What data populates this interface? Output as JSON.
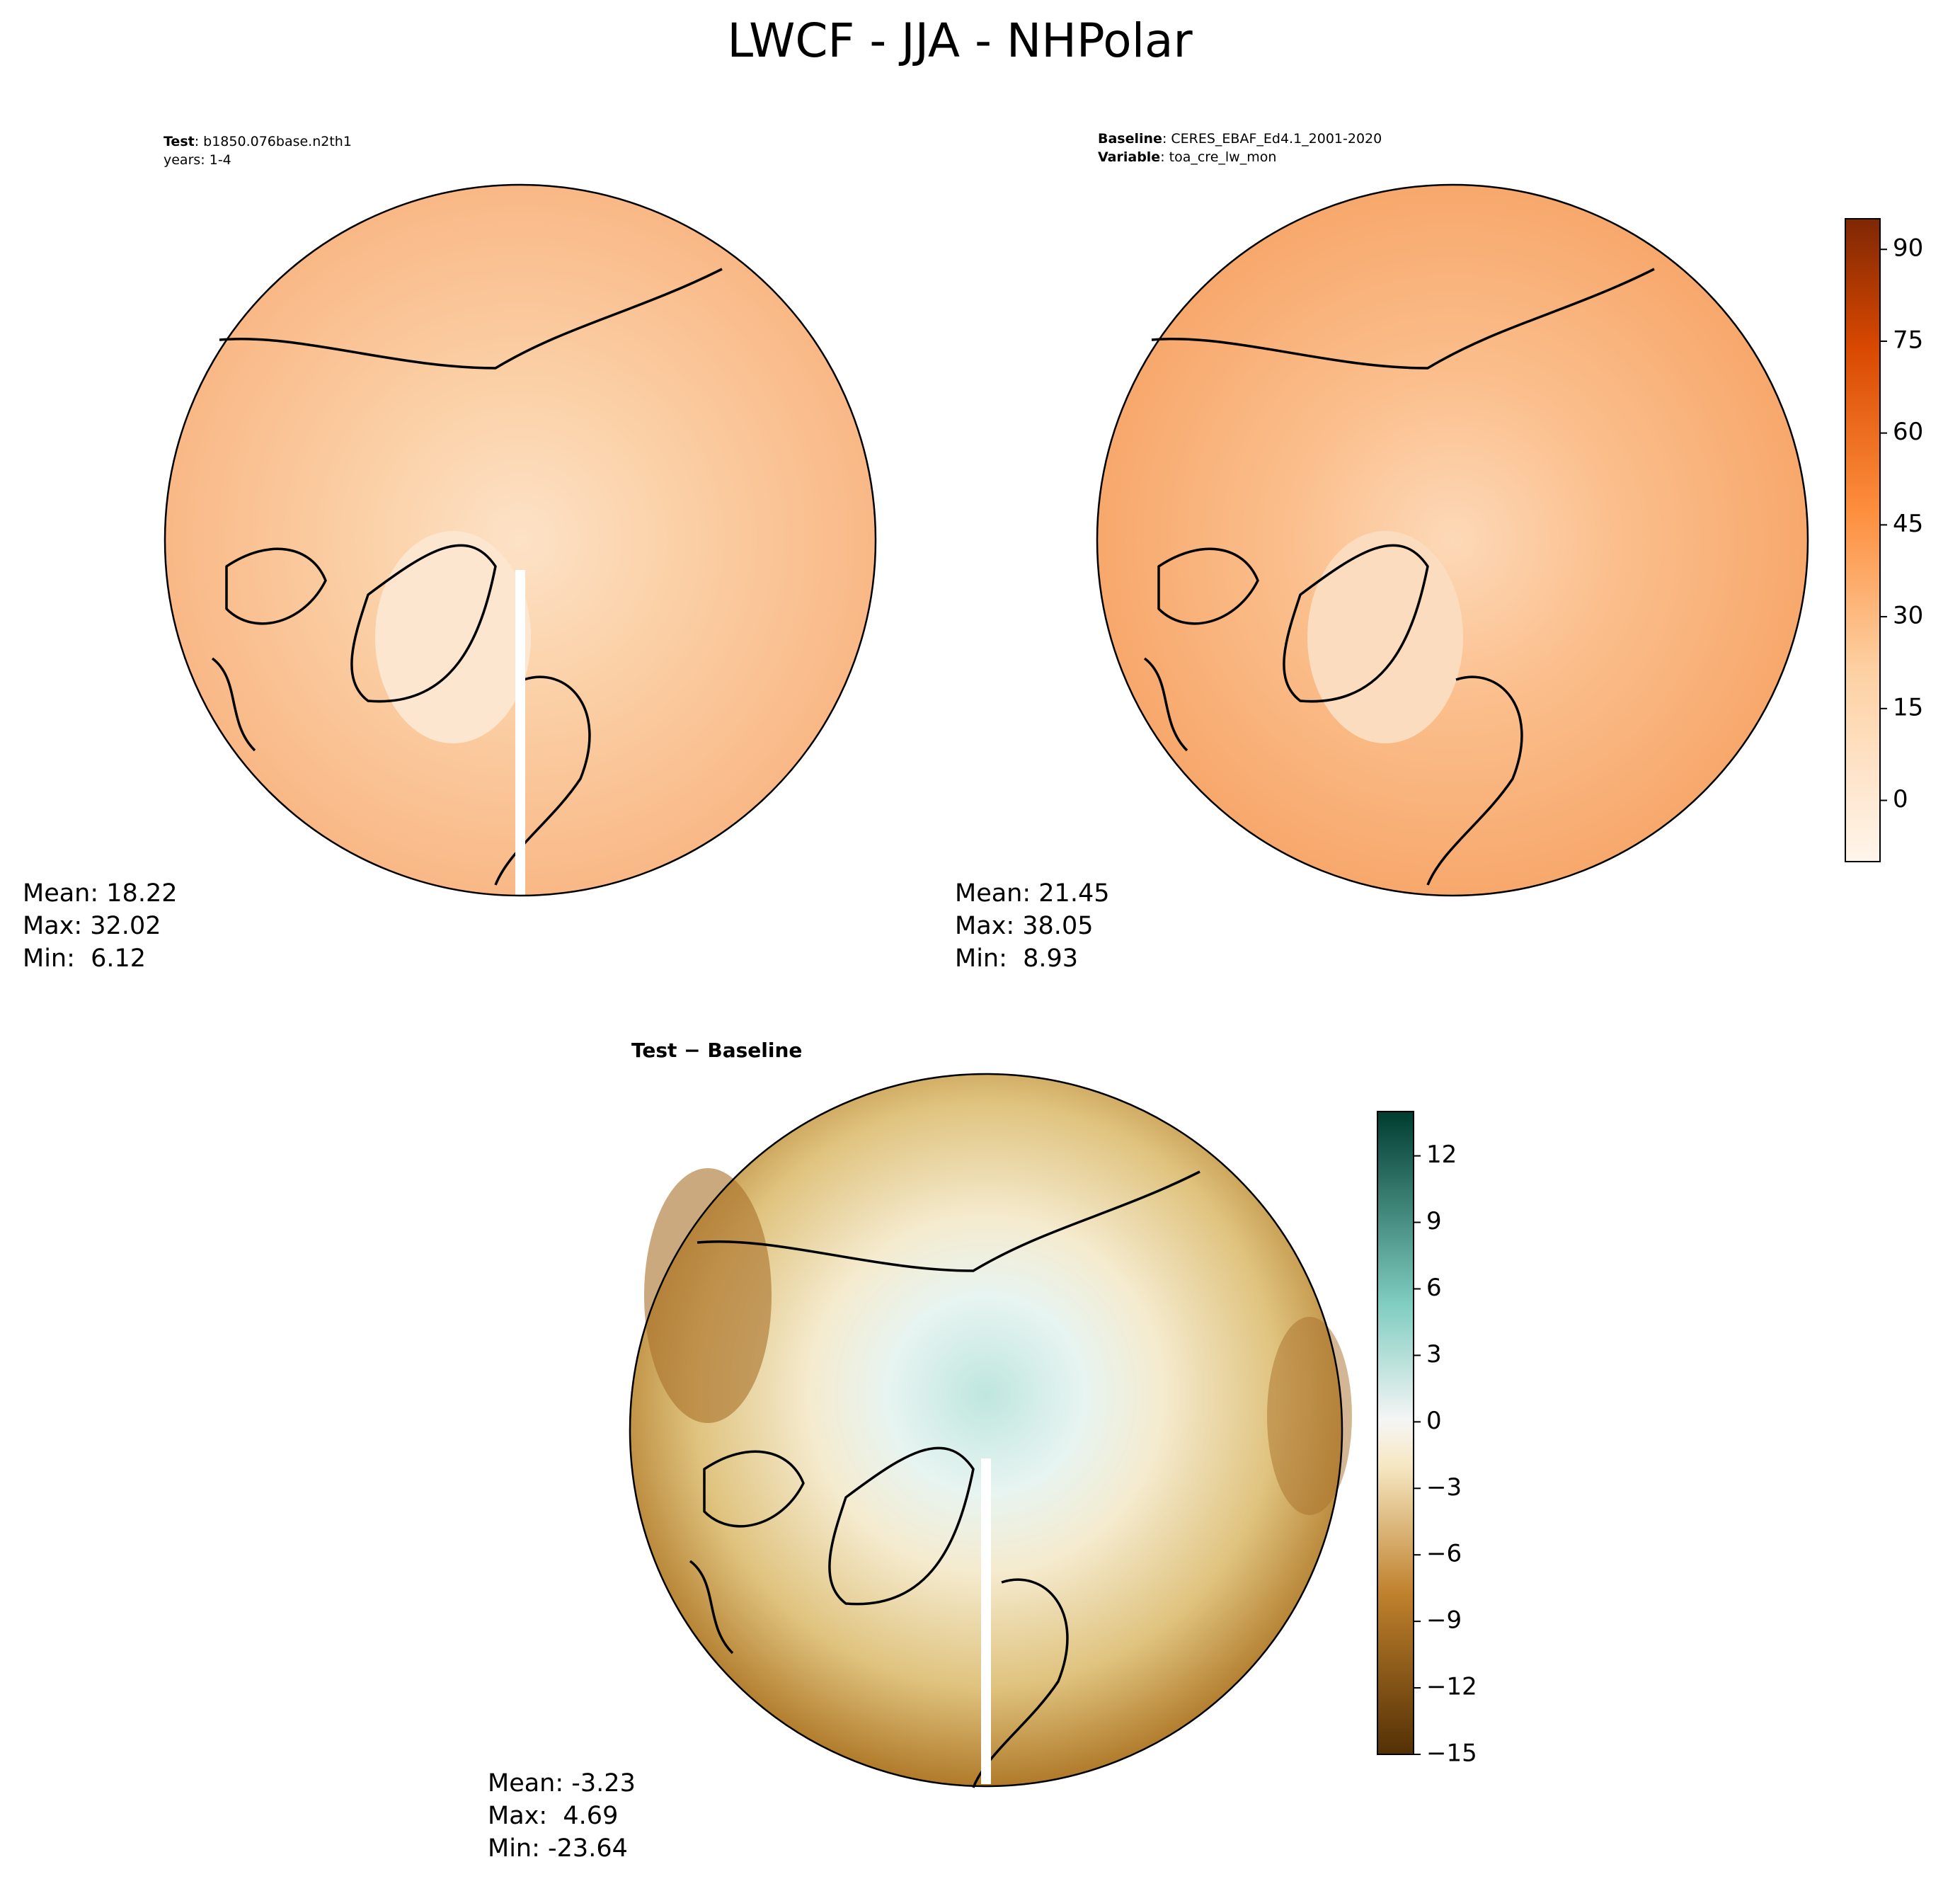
{
  "title": "LWCF - JJA - NHPolar",
  "panels": [
    {
      "header": [
        {
          "label": "Test",
          "text": ": b1850.076base.n2th1"
        },
        {
          "text": "years: 1-4"
        }
      ],
      "stats": [
        "Mean: 18.22",
        "Max: 32.02",
        "Min:  6.12"
      ]
    },
    {
      "header": [
        {
          "label": "Baseline",
          "text": ": CERES_EBAF_Ed4.1_2001-2020"
        },
        {
          "label": "Variable",
          "text": ": toa_cre_lw_mon"
        }
      ],
      "stats": [
        "Mean: 21.45",
        "Max: 38.05",
        "Min:  8.93"
      ]
    },
    {
      "header": [
        {
          "label": "Test − Baseline"
        }
      ],
      "stats": [
        "Mean: -3.23",
        "Max:  4.69",
        "Min: -23.64"
      ]
    }
  ],
  "colorbars": [
    {
      "ylim": [
        -10,
        95
      ],
      "yticks": [
        0,
        15,
        30,
        45,
        60,
        75,
        90
      ]
    },
    {
      "ylim": [
        -15,
        14
      ],
      "yticks": [
        {
          "value": -15,
          "label": "−15"
        },
        {
          "value": -12,
          "label": "−12"
        },
        {
          "value": -9,
          "label": "−9"
        },
        {
          "value": -6,
          "label": "−6"
        },
        {
          "value": -3,
          "label": "−3"
        },
        0,
        3,
        6,
        9,
        12
      ]
    }
  ]
}
